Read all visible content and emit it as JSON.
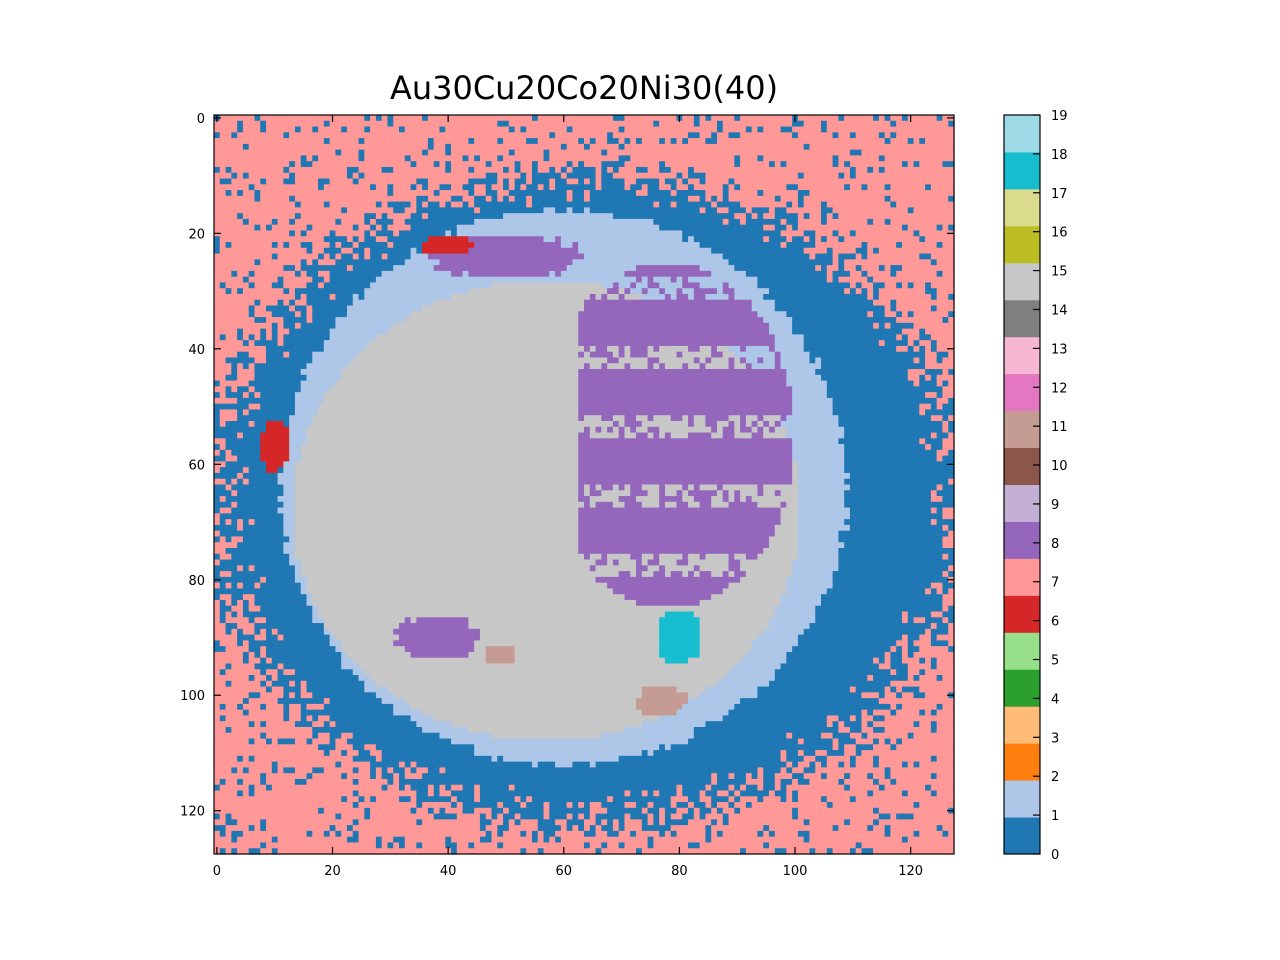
{
  "chart_data": {
    "type": "heatmap",
    "title": "Au30Cu20Co20Ni30(40)",
    "xlabel": "",
    "ylabel": "",
    "grid_size": [
      128,
      128
    ],
    "x_range": [
      -0.5,
      127.5
    ],
    "y_range": [
      -0.5,
      127.5
    ],
    "y_inverted": true,
    "x_ticks": [
      0,
      20,
      40,
      60,
      80,
      100,
      120
    ],
    "y_ticks": [
      0,
      20,
      40,
      60,
      80,
      100,
      120
    ],
    "colorbar": {
      "range": [
        0,
        19
      ],
      "ticks": [
        0,
        1,
        2,
        3,
        4,
        5,
        6,
        7,
        8,
        9,
        10,
        11,
        12,
        13,
        14,
        15,
        16,
        17,
        18,
        19
      ],
      "colors": [
        "#1f77b4",
        "#aec7e8",
        "#ff7f0e",
        "#ffbb78",
        "#2ca02c",
        "#98df8a",
        "#d62728",
        "#ff9896",
        "#9467bd",
        "#c5b0d5",
        "#8c564b",
        "#c49c94",
        "#e377c2",
        "#f7b6d2",
        "#7f7f7f",
        "#c7c7c7",
        "#bcbd22",
        "#dbdb8d",
        "#17becf",
        "#9edae5"
      ]
    },
    "regions": [
      {
        "label": 7,
        "description": "outer background (upper and lower corners)"
      },
      {
        "label": 0,
        "description": "ring around particle",
        "center": [
          64,
          66
        ],
        "radius": [
          64,
          56
        ]
      },
      {
        "label": 1,
        "description": "particle rim",
        "center": [
          60,
          64
        ],
        "radius": [
          49,
          48
        ]
      },
      {
        "label": 15,
        "description": "particle core",
        "center": [
          57,
          68
        ],
        "radius": [
          44,
          40
        ]
      },
      {
        "label": 8,
        "description": "patches on right side of particle",
        "center": [
          78,
          55
        ],
        "radius": [
          22,
          30
        ]
      },
      {
        "label": 8,
        "description": "upper band",
        "center": [
          50,
          24
        ],
        "radius": [
          14,
          4
        ]
      },
      {
        "label": 8,
        "description": "lower-left patch",
        "center": [
          38,
          90
        ],
        "radius": [
          8,
          4
        ]
      },
      {
        "label": 6,
        "description": "left cluster",
        "center": [
          10,
          57
        ],
        "radius": [
          3,
          5
        ]
      },
      {
        "label": 6,
        "description": "upper cluster",
        "center": [
          40,
          22
        ],
        "radius": [
          5,
          2
        ]
      },
      {
        "label": 18,
        "description": "lower-right cluster",
        "center": [
          80,
          90
        ],
        "radius": [
          4,
          5
        ]
      },
      {
        "label": 11,
        "description": "lower-right cluster",
        "center": [
          77,
          101
        ],
        "radius": [
          5,
          3
        ]
      },
      {
        "label": 11,
        "description": "lower-middle cluster",
        "center": [
          49,
          93
        ],
        "radius": [
          3,
          2
        ]
      }
    ]
  }
}
